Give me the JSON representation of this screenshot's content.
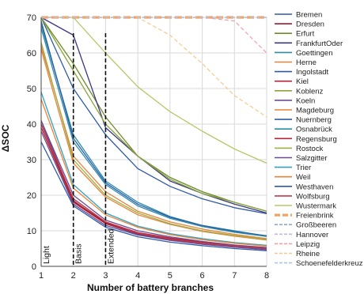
{
  "chart_data": {
    "type": "line",
    "xlabel": "Number of battery branches",
    "ylabel": "ΔSOC",
    "x": [
      1,
      2,
      3,
      4,
      5,
      6,
      7,
      8
    ],
    "xlim": [
      1,
      8
    ],
    "ylim": [
      0,
      70
    ],
    "xticks": [
      1,
      2,
      3,
      4,
      5,
      6,
      7,
      8
    ],
    "yticks": [
      0,
      5,
      10,
      15,
      20,
      25,
      30,
      35,
      40,
      45,
      50,
      55,
      60,
      65,
      70
    ],
    "grid": true,
    "legend_position": "right",
    "annotations": [
      {
        "text": "Light",
        "x": 1
      },
      {
        "text": "Basis",
        "x": 2
      },
      {
        "text": "Extended",
        "x": 3
      }
    ],
    "series": [
      {
        "name": "Bremen",
        "color": "#2e5aa8",
        "dash": "solid",
        "values": [
          41,
          18.5,
          12,
          9,
          7.5,
          6.3,
          5.5,
          4.8
        ]
      },
      {
        "name": "Dresden",
        "color": "#a11a2f",
        "dash": "solid",
        "values": [
          40,
          18.3,
          12.3,
          9.3,
          7.8,
          6.5,
          5.7,
          5
        ]
      },
      {
        "name": "Erfurt",
        "color": "#6e8b2a",
        "dash": "solid",
        "values": [
          70,
          57,
          42,
          31,
          25,
          21,
          18,
          15.5
        ]
      },
      {
        "name": "FrankfurtOder",
        "color": "#3c3787",
        "dash": "solid",
        "values": [
          70,
          65,
          39,
          31,
          24,
          20.5,
          17.5,
          15
        ]
      },
      {
        "name": "Goettingen",
        "color": "#2a8ca6",
        "dash": "solid",
        "values": [
          68,
          37,
          24,
          18,
          14,
          11.5,
          10,
          8.5
        ]
      },
      {
        "name": "Herne",
        "color": "#e8833a",
        "dash": "solid",
        "values": [
          62,
          31,
          21,
          15.5,
          12.5,
          10.5,
          9,
          7.8
        ]
      },
      {
        "name": "Ingolstadt",
        "color": "#2e5aa8",
        "dash": "solid",
        "values": [
          70,
          50,
          37,
          27.5,
          22.5,
          19,
          16.5,
          14.8
        ]
      },
      {
        "name": "Kiel",
        "color": "#b32436",
        "dash": "solid",
        "values": [
          40,
          19,
          12.5,
          9.5,
          8,
          6.8,
          5.9,
          5.2
        ]
      },
      {
        "name": "Koblenz",
        "color": "#8aa63a",
        "dash": "solid",
        "values": [
          70,
          55,
          40,
          31,
          24.5,
          20.5,
          18,
          15.5
        ]
      },
      {
        "name": "Koeln",
        "color": "#6a4c93",
        "dash": "solid",
        "values": [
          41,
          20,
          13,
          10,
          8.3,
          7,
          6,
          5.3
        ]
      },
      {
        "name": "Magdeburg",
        "color": "#e8833a",
        "dash": "solid",
        "values": [
          61,
          29,
          19.5,
          14.5,
          11.8,
          9.8,
          8.5,
          7.4
        ]
      },
      {
        "name": "Nuernberg",
        "color": "#2e5aa8",
        "dash": "solid",
        "values": [
          69,
          36,
          23.5,
          17.5,
          13.8,
          11.5,
          9.8,
          8.6
        ]
      },
      {
        "name": "Osnabrück",
        "color": "#2a8ca6",
        "dash": "solid",
        "values": [
          67,
          35,
          23,
          17,
          13.5,
          11.2,
          9.6,
          8.4
        ]
      },
      {
        "name": "Regensburg",
        "color": "#b32436",
        "dash": "solid",
        "values": [
          39,
          18,
          12,
          9.2,
          7.6,
          6.4,
          5.6,
          4.9
        ]
      },
      {
        "name": "Rostock",
        "color": "#9bb04a",
        "dash": "solid",
        "values": [
          63,
          30,
          20,
          15,
          12,
          10,
          8.7,
          7.6
        ]
      },
      {
        "name": "Salzgitter",
        "color": "#6a4c93",
        "dash": "solid",
        "values": [
          38,
          17.5,
          11.5,
          8.8,
          7.3,
          6.2,
          5.4,
          4.7
        ]
      },
      {
        "name": "Trier",
        "color": "#34a0c0",
        "dash": "solid",
        "values": [
          49,
          23,
          15,
          11.3,
          9.2,
          7.8,
          6.7,
          5.9
        ]
      },
      {
        "name": "Weil",
        "color": "#e8833a",
        "dash": "solid",
        "values": [
          47,
          22,
          14.5,
          11,
          8.9,
          7.5,
          6.5,
          5.7
        ]
      },
      {
        "name": "Westhaven",
        "color": "#2e5aa8",
        "dash": "solid",
        "values": [
          35,
          17,
          11,
          8.3,
          6.8,
          5.8,
          5,
          4.4
        ]
      },
      {
        "name": "Wolfsburg",
        "color": "#c23a4e",
        "dash": "solid",
        "values": [
          40,
          19,
          12.5,
          9.4,
          7.7,
          6.5,
          5.7,
          5
        ]
      },
      {
        "name": "Wustermark",
        "color": "#b5c96a",
        "dash": "solid",
        "values": [
          70,
          70,
          60,
          50.5,
          43.5,
          38,
          33,
          29
        ]
      },
      {
        "name": "Freienbrink",
        "color": "#f4a261",
        "dash": "thick-dash",
        "values": [
          70,
          70,
          70,
          70,
          70,
          70,
          70,
          70
        ]
      },
      {
        "name": "Großbeeren",
        "color": "#8fa8d8",
        "dash": "dash",
        "values": [
          70,
          70,
          70,
          70,
          70,
          70,
          70,
          70
        ]
      },
      {
        "name": "Hannover",
        "color": "#c9b3d9",
        "dash": "dash",
        "values": [
          70,
          70,
          70,
          70,
          70,
          70,
          70,
          70
        ]
      },
      {
        "name": "Leipzig",
        "color": "#f0a0a8",
        "dash": "dash",
        "values": [
          70,
          70,
          70,
          70,
          70,
          70,
          69,
          60
        ]
      },
      {
        "name": "Rheine",
        "color": "#f6c98a",
        "dash": "dash",
        "values": [
          70,
          70,
          70,
          70,
          65,
          57,
          48,
          42
        ]
      },
      {
        "name": "Schoenefelderkreuz",
        "color": "#a9c5e8",
        "dash": "dash",
        "values": [
          70,
          70,
          70,
          70,
          70,
          70,
          70,
          70
        ]
      }
    ]
  }
}
